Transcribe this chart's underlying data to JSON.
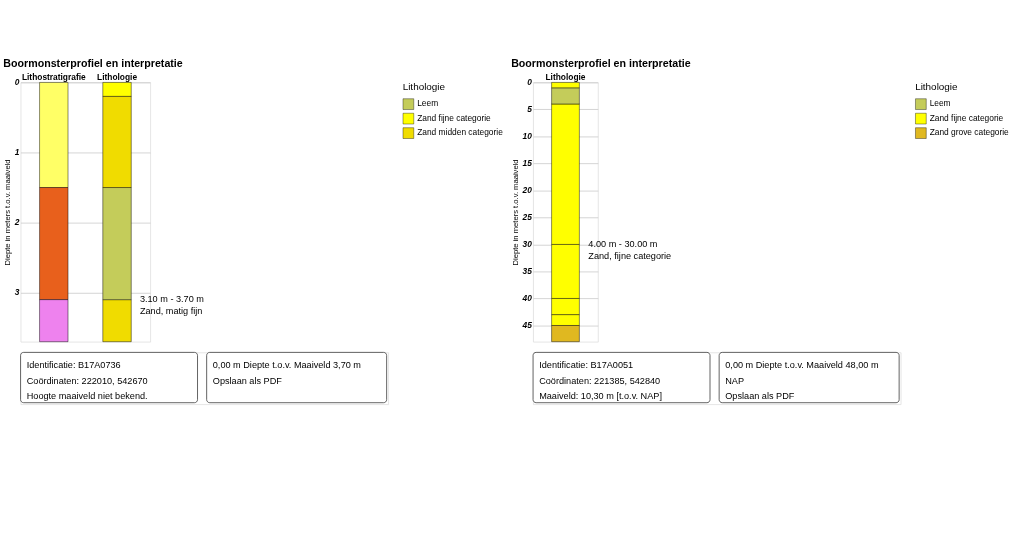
{
  "chart_data": [
    {
      "type": "bar",
      "title": "Boormonsterprofiel en interpretatie",
      "ylabel": "Diepte in meters t.o.v. maaiveld",
      "legend_title": "Lithologie",
      "legend": "top right",
      "grid": "y",
      "categories": [
        "Lithostratigrafie",
        "Lithologie"
      ],
      "ylim": [
        3.7,
        0
      ],
      "yticks": [
        0,
        1,
        2,
        3
      ],
      "series": [
        {
          "color": "#ffff66",
          "base": [
            0,
            null
          ],
          "values": [
            1.5,
            null
          ]
        },
        {
          "color": "#e8601c",
          "base": [
            1.5,
            null
          ],
          "values": [
            1.6,
            null
          ]
        },
        {
          "color": "#ee82ee",
          "base": [
            3.1,
            null
          ],
          "values": [
            0.6,
            null
          ]
        },
        {
          "name": "Leem",
          "color": "#c4cc5a",
          "base": [
            null,
            1.5
          ],
          "values": [
            null,
            1.6
          ]
        },
        {
          "name": "Zand fijne categorie",
          "color": "#ffff00",
          "base": [
            null,
            0
          ],
          "values": [
            null,
            0.2
          ]
        },
        {
          "name": "Zand midden categorie",
          "color": "#f0dc00",
          "base": [
            null,
            0.2
          ],
          "values": [
            null,
            1.3
          ]
        },
        {
          "color": "#f0dc00",
          "base": [
            null,
            3.1
          ],
          "values": [
            null,
            0.6
          ]
        }
      ],
      "annotations": [
        {
          "text": "3.10 m - 3.70 m\nZand, matig fijn",
          "x": "Lithologie",
          "y": 3.1
        },
        "Identificatie: B17A0736",
        "Coördinaten: 222010, 542670",
        "Hoogte maaiveld niet bekend.",
        "0,00 m   Diepte t.o.v. Maaiveld   3,70 m",
        "Opslaan als PDF"
      ]
    },
    {
      "type": "bar",
      "title": "Boormonsterprofiel en interpretatie",
      "ylabel": "Diepte in meters t.o.v. maaiveld",
      "legend_title": "Lithologie",
      "legend": "top right",
      "grid": "y",
      "categories": [
        "Lithologie"
      ],
      "ylim": [
        48,
        0
      ],
      "yticks": [
        0,
        5,
        10,
        15,
        20,
        25,
        30,
        35,
        40,
        45
      ],
      "series": [
        {
          "name": "Leem",
          "color": "#c4cc5a",
          "base": [
            1
          ],
          "values": [
            3
          ]
        },
        {
          "name": "Zand fijne categorie",
          "color": "#ffff00",
          "base": [
            0
          ],
          "values": [
            1
          ]
        },
        {
          "name": "Zand grove categorie",
          "color": "#e0b820",
          "base": [
            45
          ],
          "values": [
            3
          ]
        },
        {
          "color": "#ffff00",
          "base": [
            4
          ],
          "values": [
            26
          ]
        },
        {
          "color": "#ffff00",
          "base": [
            30
          ],
          "values": [
            10
          ]
        },
        {
          "color": "#ffff00",
          "base": [
            40
          ],
          "values": [
            3
          ]
        },
        {
          "color": "#ffff00",
          "base": [
            43
          ],
          "values": [
            2
          ]
        }
      ],
      "annotations": [
        {
          "text": "4.00 m - 30.00 m\nZand, fijne categorie",
          "x": "Lithologie",
          "y": 30
        },
        "Identificatie: B17A0051",
        "Coördinaten: 221385, 542840",
        "Maaiveld: 10,30 m [t.o.v. NAP]",
        "0,00 m   Diepte t.o.v. Maaiveld   48,00 m",
        "NAP",
        "Opslaan als PDF"
      ]
    }
  ]
}
